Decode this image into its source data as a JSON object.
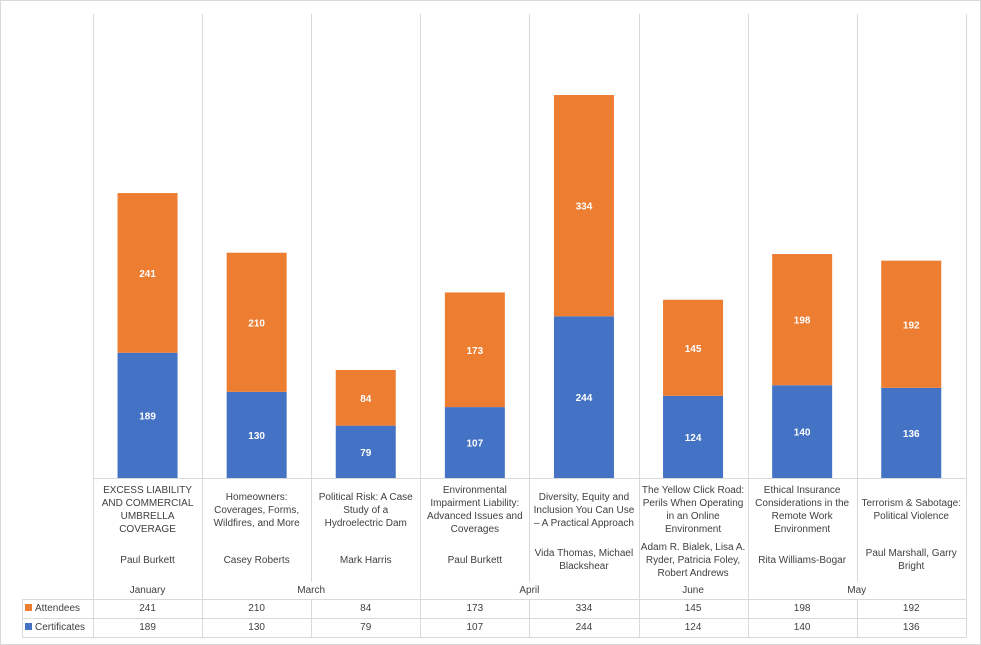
{
  "chart_data": {
    "type": "bar",
    "stacked": true,
    "title": "",
    "xlabel": "",
    "ylabel": "",
    "ylim": [
      0,
      578
    ],
    "grid": "vertical category separators",
    "legend": "data-table-left",
    "categories": [
      {
        "title": "EXCESS LIABILITY AND COMMERCIAL UMBRELLA COVERAGE",
        "speaker": "Paul Burkett",
        "month": "January"
      },
      {
        "title": "Homeowners: Coverages, Forms, Wildfires, and More",
        "speaker": "Casey Roberts",
        "month": "March"
      },
      {
        "title": "Political Risk: A Case Study of a Hydroelectric Dam",
        "speaker": "Mark Harris",
        "month": "March"
      },
      {
        "title": "Environmental Impairment Liability: Advanced Issues and Coverages",
        "speaker": "Paul Burkett",
        "month": "April"
      },
      {
        "title": "Diversity, Equity and Inclusion You Can Use – A Practical Approach",
        "speaker": "Vida Thomas, Michael Blackshear",
        "month": "April"
      },
      {
        "title": "The Yellow Click Road: Perils When Operating in an Online Environment",
        "speaker": "Adam R. Bialek, Lisa A. Ryder, Patricia Foley, Robert Andrews",
        "month": "June"
      },
      {
        "title": "Ethical Insurance Considerations in the Remote Work Environment",
        "speaker": "Rita Williams-Bogar",
        "month": "May"
      },
      {
        "title": "Terrorism & Sabotage: Political Violence",
        "speaker": "Paul Marshall, Garry Bright",
        "month": "May"
      }
    ],
    "month_groups": [
      {
        "label": "January",
        "span": 1
      },
      {
        "label": "March",
        "span": 2
      },
      {
        "label": "April",
        "span": 2
      },
      {
        "label": "June",
        "span": 1
      },
      {
        "label": "May",
        "span": 2
      }
    ],
    "series": [
      {
        "name": "Certificates",
        "color": "#4472c4",
        "values": [
          189,
          130,
          79,
          107,
          244,
          124,
          140,
          136
        ]
      },
      {
        "name": "Attendees",
        "color": "#ed7d31",
        "values": [
          241,
          210,
          84,
          173,
          334,
          145,
          198,
          192
        ]
      }
    ],
    "table_rows": [
      {
        "name": "Attendees",
        "color": "#ed7d31",
        "values": [
          "241",
          "210",
          "84",
          "173",
          "334",
          "145",
          "198",
          "192"
        ]
      },
      {
        "name": "Certificates",
        "color": "#4472c4",
        "values": [
          "189",
          "130",
          "79",
          "107",
          "244",
          "124",
          "140",
          "136"
        ]
      }
    ]
  }
}
